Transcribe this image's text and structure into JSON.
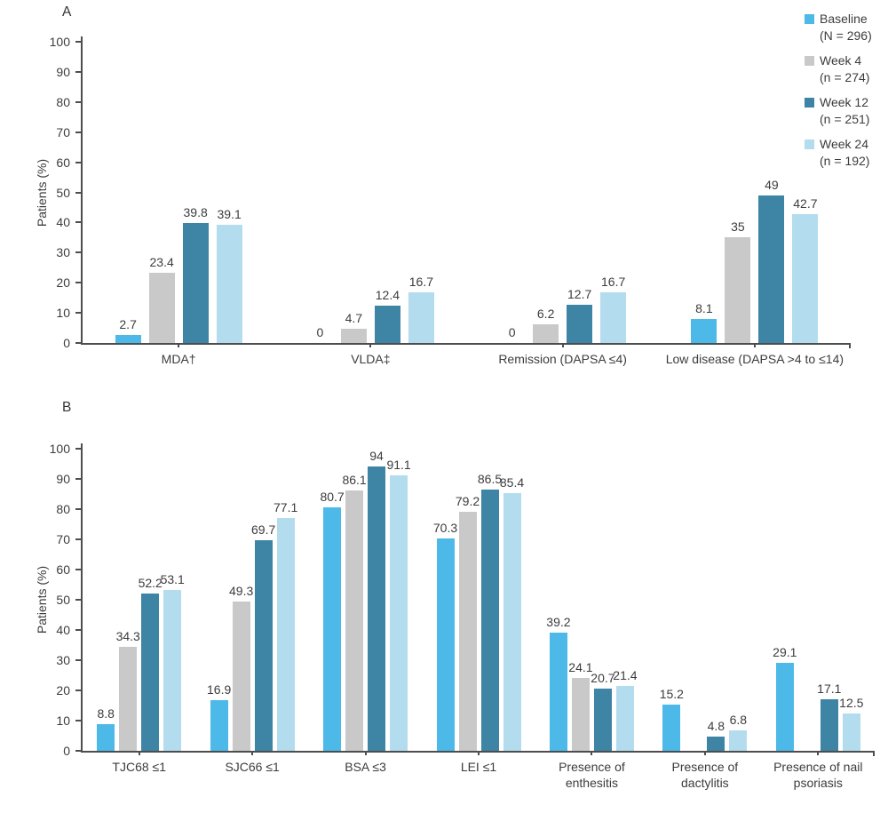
{
  "chart_data": [
    {
      "panel": "A",
      "type": "bar",
      "title": "",
      "ylabel": "Patients (%)",
      "xlabel": "",
      "ylim": [
        0,
        100
      ],
      "yticks": [
        0,
        10,
        20,
        30,
        40,
        50,
        60,
        70,
        80,
        90,
        100
      ],
      "grid": false,
      "legend_position": "top-right",
      "categories": [
        "MDA†",
        "VLDA‡",
        "Remission (DAPSA ≤4)",
        "Low disease (DAPSA >4 to ≤14)"
      ],
      "series": [
        {
          "name": "Baseline",
          "sub": "(N = 296)",
          "color": "#4db9e8",
          "values": [
            2.7,
            0,
            0,
            8.1
          ]
        },
        {
          "name": "Week 4",
          "sub": "(n = 274)",
          "color": "#c9c9c9",
          "values": [
            23.4,
            4.7,
            6.2,
            35
          ]
        },
        {
          "name": "Week 12",
          "sub": "(n = 251)",
          "color": "#3e84a4",
          "values": [
            39.8,
            12.4,
            12.7,
            49
          ]
        },
        {
          "name": "Week 24",
          "sub": "(n = 192)",
          "color": "#b3dcee",
          "values": [
            39.1,
            16.7,
            16.7,
            42.7
          ]
        }
      ]
    },
    {
      "panel": "B",
      "type": "bar",
      "title": "",
      "ylabel": "Patients (%)",
      "xlabel": "",
      "ylim": [
        0,
        100
      ],
      "yticks": [
        0,
        10,
        20,
        30,
        40,
        50,
        60,
        70,
        80,
        90,
        100
      ],
      "grid": false,
      "legend_position": "none",
      "categories": [
        "TJC68 ≤1",
        "SJC66 ≤1",
        "BSA ≤3",
        "LEI ≤1",
        "Presence of\nenthesitis",
        "Presence of\ndactylitis",
        "Presence of nail\npsoriasis"
      ],
      "series": [
        {
          "name": "Baseline",
          "sub": "(N = 296)",
          "color": "#4db9e8",
          "values": [
            8.8,
            16.9,
            80.7,
            70.3,
            39.2,
            15.2,
            29.1
          ]
        },
        {
          "name": "Week 4",
          "sub": "(n = 274)",
          "color": "#c9c9c9",
          "values": [
            34.3,
            49.3,
            86.1,
            79.2,
            24.1,
            null,
            null
          ]
        },
        {
          "name": "Week 12",
          "sub": "(n = 251)",
          "color": "#3e84a4",
          "values": [
            52.2,
            69.7,
            94,
            86.5,
            20.7,
            4.8,
            17.1
          ]
        },
        {
          "name": "Week 24",
          "sub": "(n = 192)",
          "color": "#b3dcee",
          "values": [
            53.1,
            77.1,
            91.1,
            85.4,
            21.4,
            6.8,
            12.5
          ]
        }
      ]
    }
  ]
}
